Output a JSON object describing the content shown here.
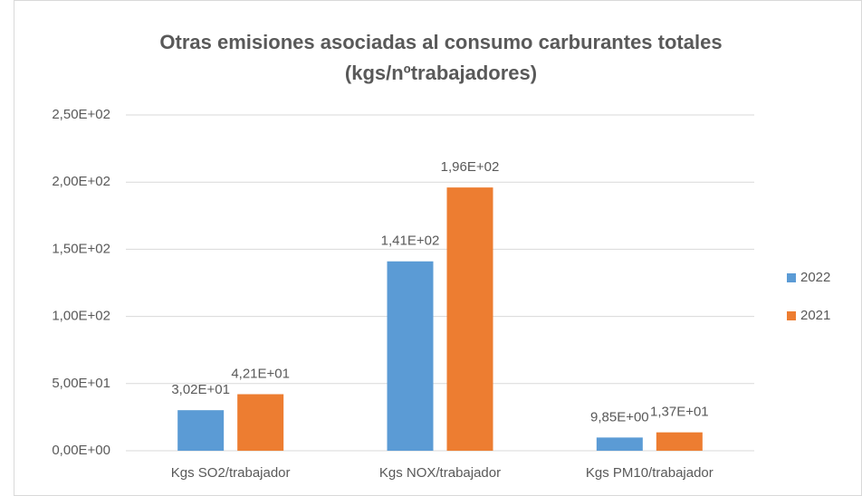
{
  "chart_data": {
    "type": "bar",
    "title": [
      "Otras emisiones asociadas al consumo carburantes totales",
      "(kgs/nºtrabajadores)"
    ],
    "categories": [
      "Kgs SO2/trabajador",
      "Kgs NOX/trabajador",
      "Kgs PM10/trabajador"
    ],
    "series": [
      {
        "name": "2022",
        "color": "#5b9bd5",
        "values": [
          30.2,
          141,
          9.85
        ],
        "value_labels": [
          "3,02E+01",
          "1,41E+02",
          "9,85E+00"
        ]
      },
      {
        "name": "2021",
        "color": "#ed7d31",
        "values": [
          42.1,
          196,
          13.7
        ],
        "value_labels": [
          "4,21E+01",
          "1,96E+02",
          "1,37E+01"
        ]
      }
    ],
    "ylim": [
      0,
      250
    ],
    "yticks": [
      {
        "value": 0,
        "label": "0,00E+00"
      },
      {
        "value": 50,
        "label": "5,00E+01"
      },
      {
        "value": 100,
        "label": "1,00E+02"
      },
      {
        "value": 150,
        "label": "1,50E+02"
      },
      {
        "value": 200,
        "label": "2,00E+02"
      },
      {
        "value": 250,
        "label": "2,50E+02"
      }
    ],
    "grid": true,
    "legend": "right"
  }
}
